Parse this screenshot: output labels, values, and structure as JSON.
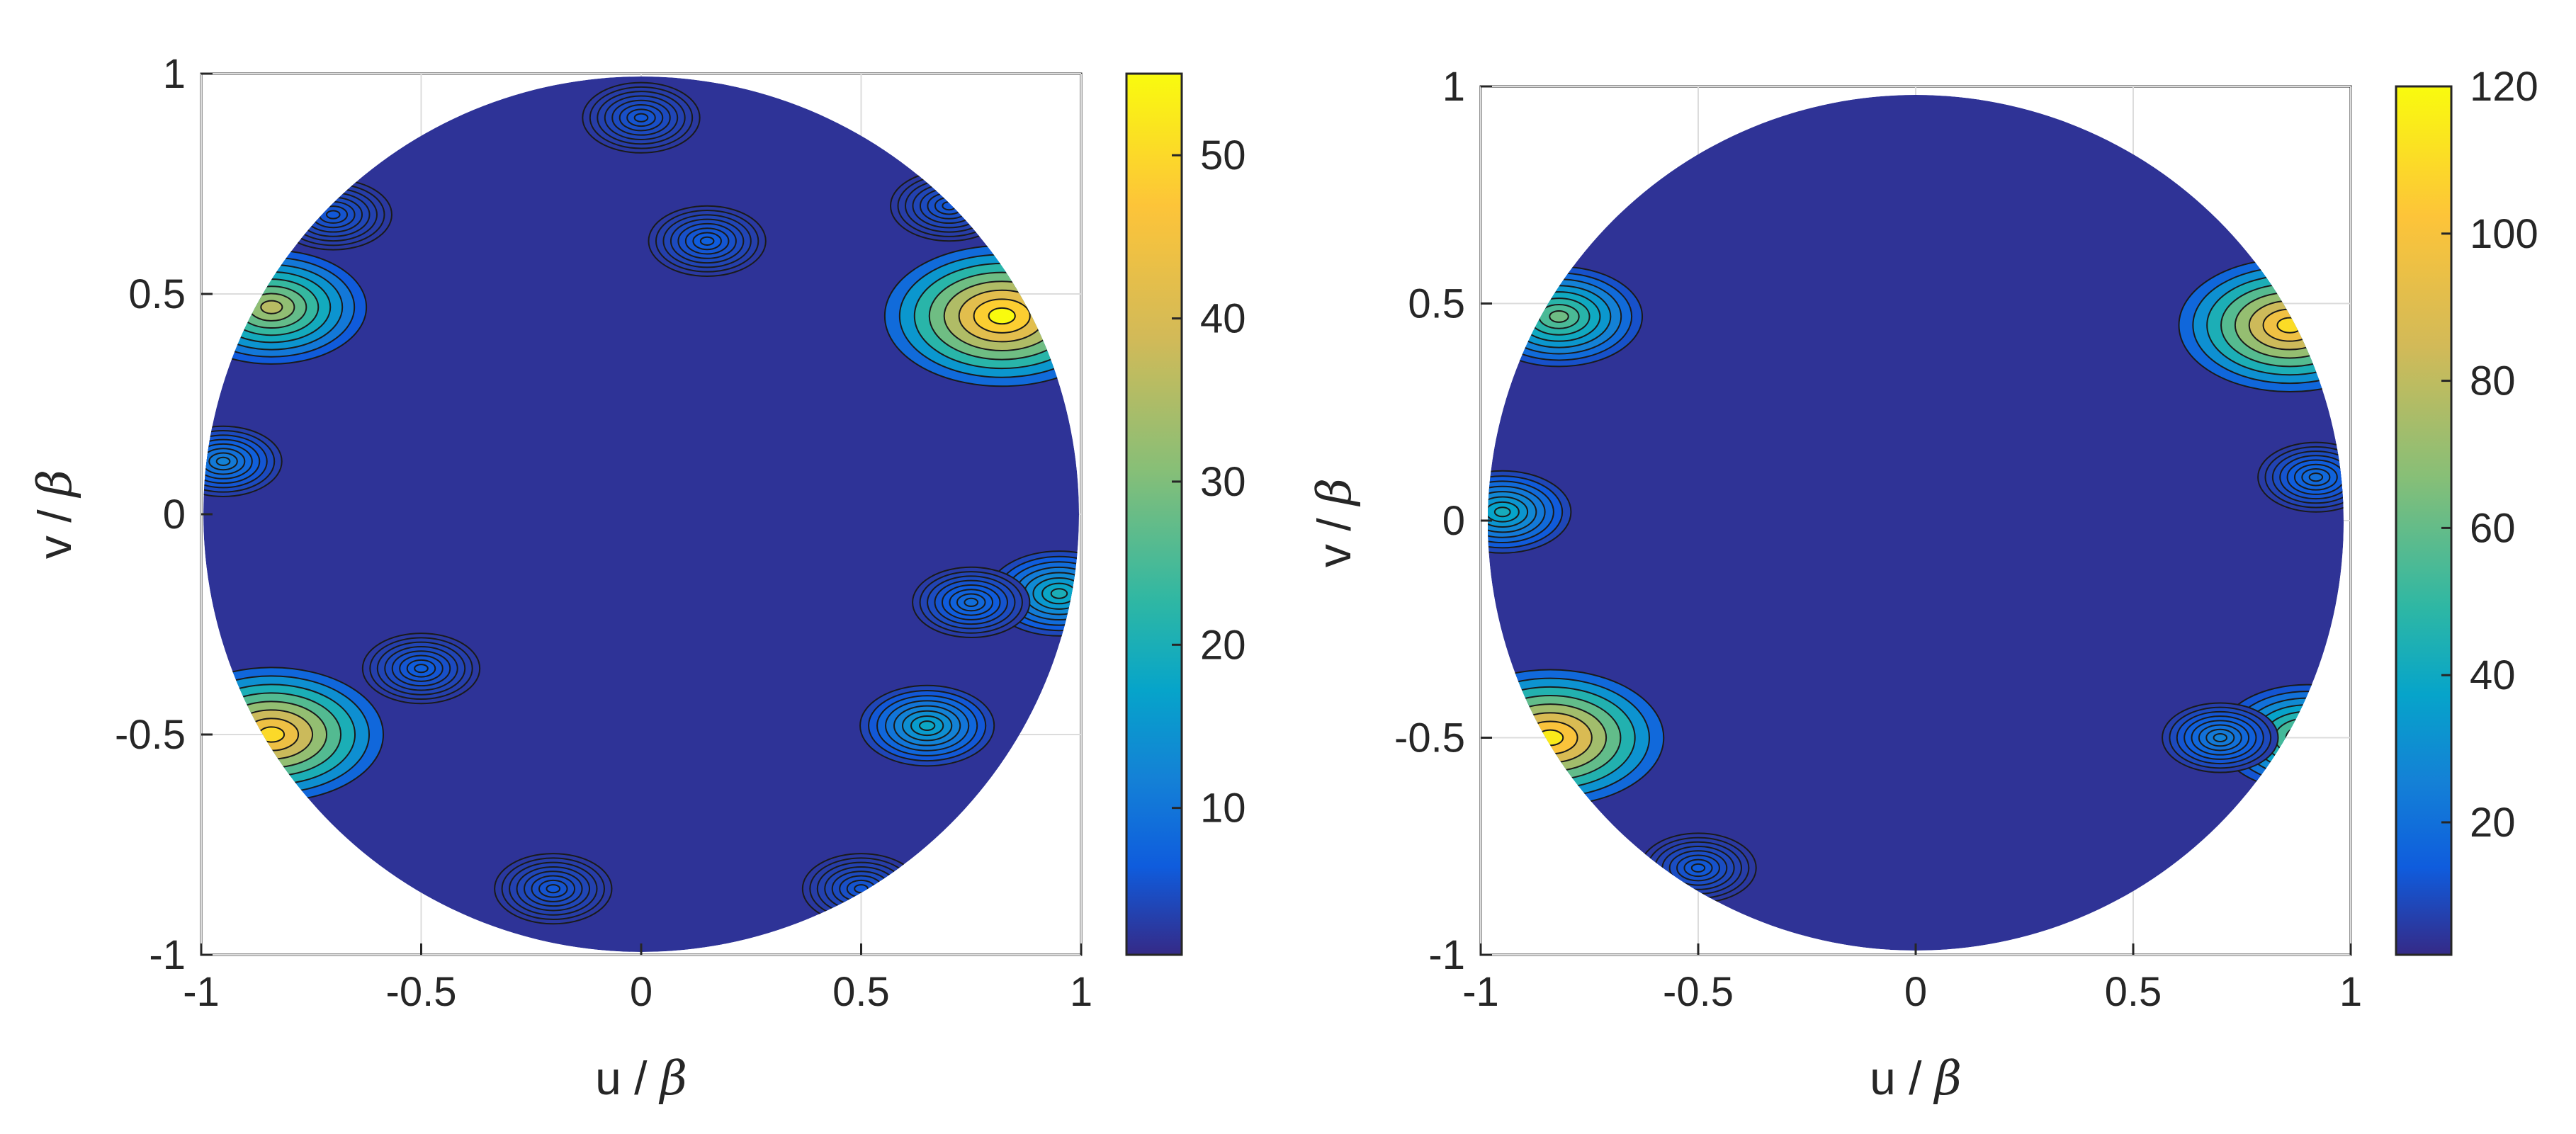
{
  "chart_data": [
    {
      "type": "contour",
      "xlabel": "u / β",
      "ylabel": "v / β",
      "xlim": [
        -1,
        1
      ],
      "ylim": [
        -1,
        1
      ],
      "xticks": [
        "-1",
        "-0.5",
        "0",
        "0.5",
        "1"
      ],
      "yticks": [
        "1",
        "0.5",
        "0",
        "-0.5",
        "-1"
      ],
      "grid": true,
      "colorbar": {
        "min": 1,
        "max": 55,
        "ticks": [
          "50",
          "40",
          "30",
          "20",
          "10"
        ],
        "tick_values": [
          50,
          40,
          30,
          20,
          10
        ]
      },
      "colormap": "parula",
      "base_level": 2,
      "hotspots": [
        {
          "u": 0.82,
          "v": 0.45,
          "value": 55
        },
        {
          "u": -0.84,
          "v": 0.47,
          "value": 36
        },
        {
          "u": -0.84,
          "v": -0.5,
          "value": 50
        },
        {
          "u": 0.95,
          "v": -0.18,
          "value": 20
        },
        {
          "u": 0.65,
          "v": -0.48,
          "value": 18
        },
        {
          "u": -0.95,
          "v": 0.12,
          "value": 12
        },
        {
          "u": 0.75,
          "v": -0.2,
          "value": 9
        },
        {
          "u": 0.15,
          "v": 0.62,
          "value": 7
        },
        {
          "u": -0.5,
          "v": -0.35,
          "value": 7
        },
        {
          "u": 0.0,
          "v": 0.9,
          "value": 6
        },
        {
          "u": -0.2,
          "v": -0.85,
          "value": 6
        },
        {
          "u": 0.5,
          "v": -0.85,
          "value": 6
        },
        {
          "u": -0.7,
          "v": 0.68,
          "value": 6
        },
        {
          "u": 0.7,
          "v": 0.7,
          "value": 6
        }
      ]
    },
    {
      "type": "contour",
      "xlabel": "u / β",
      "ylabel": "v / β",
      "xlim": [
        -1,
        1
      ],
      "ylim": [
        -1,
        1
      ],
      "xticks": [
        "-1",
        "-0.5",
        "0",
        "0.5",
        "1"
      ],
      "yticks": [
        "1",
        "0.5",
        "0",
        "-0.5",
        "-1"
      ],
      "grid": true,
      "colorbar": {
        "min": 2,
        "max": 120,
        "ticks": [
          "120",
          "100",
          "80",
          "60",
          "40",
          "20"
        ],
        "tick_values": [
          120,
          100,
          80,
          60,
          40,
          20
        ]
      },
      "colormap": "parula",
      "base_level": 4,
      "hotspots": [
        {
          "u": 0.86,
          "v": 0.45,
          "value": 110
        },
        {
          "u": -0.84,
          "v": -0.5,
          "value": 115
        },
        {
          "u": -0.82,
          "v": 0.47,
          "value": 62
        },
        {
          "u": 0.9,
          "v": -0.5,
          "value": 70
        },
        {
          "u": -0.95,
          "v": 0.02,
          "value": 42
        },
        {
          "u": 0.7,
          "v": -0.5,
          "value": 26
        },
        {
          "u": 0.92,
          "v": 0.1,
          "value": 20
        },
        {
          "u": -0.5,
          "v": -0.8,
          "value": 14
        }
      ]
    }
  ]
}
